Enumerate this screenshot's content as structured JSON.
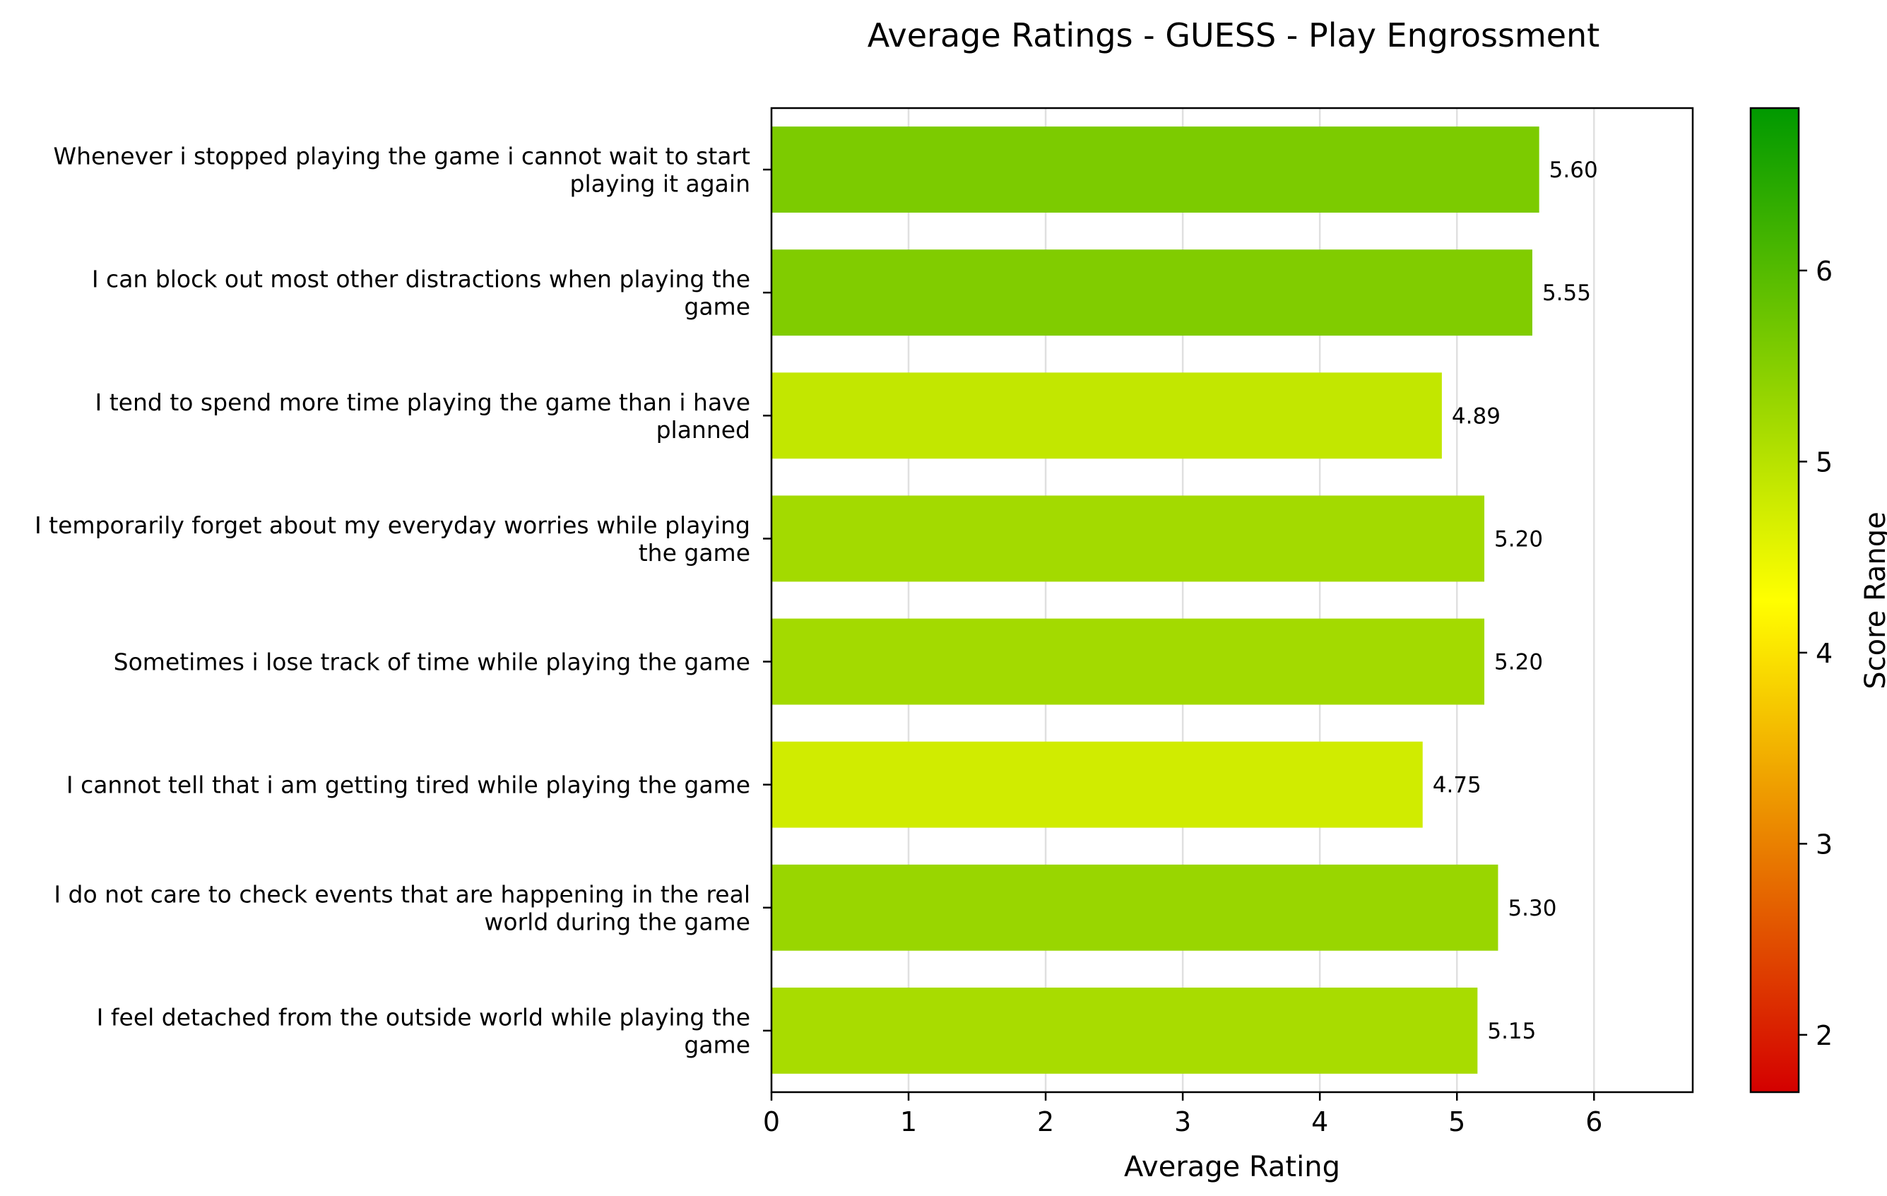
{
  "chart_data": {
    "type": "bar",
    "orientation": "horizontal",
    "title": "Average Ratings - GUESS - Play Engrossment",
    "xlabel": "Average Rating",
    "ylabel": "",
    "xlim": [
      0,
      6.72
    ],
    "xticks": [
      "0",
      "1",
      "2",
      "3",
      "4",
      "5",
      "6"
    ],
    "grid": "vertical",
    "categories": [
      [
        "Whenever i stopped playing the game i cannot wait to start",
        "playing it again"
      ],
      [
        "I can block out most other distractions when playing the",
        "game"
      ],
      [
        "I tend to spend more time playing the game than i have",
        "planned"
      ],
      [
        "I temporarily forget about my everyday worries while playing",
        "the game"
      ],
      [
        "Sometimes i lose track of time while playing the game"
      ],
      [
        "I cannot tell that i am getting tired while playing the game"
      ],
      [
        "I do not care to check events that are happening in the real",
        "world during the game"
      ],
      [
        "I feel detached from the outside world while playing the",
        "game"
      ]
    ],
    "values": [
      5.6,
      5.55,
      4.89,
      5.2,
      5.2,
      4.75,
      5.3,
      5.15
    ],
    "value_labels": [
      "5.60",
      "5.55",
      "4.89",
      "5.20",
      "5.20",
      "4.75",
      "5.30",
      "5.15"
    ],
    "colorbar": {
      "label": "Score Range",
      "range": [
        1.7,
        6.85
      ],
      "ticks": [
        "2",
        "3",
        "4",
        "5",
        "6"
      ],
      "colors": [
        "#d40000",
        "#ffff00",
        "#009900"
      ]
    }
  }
}
